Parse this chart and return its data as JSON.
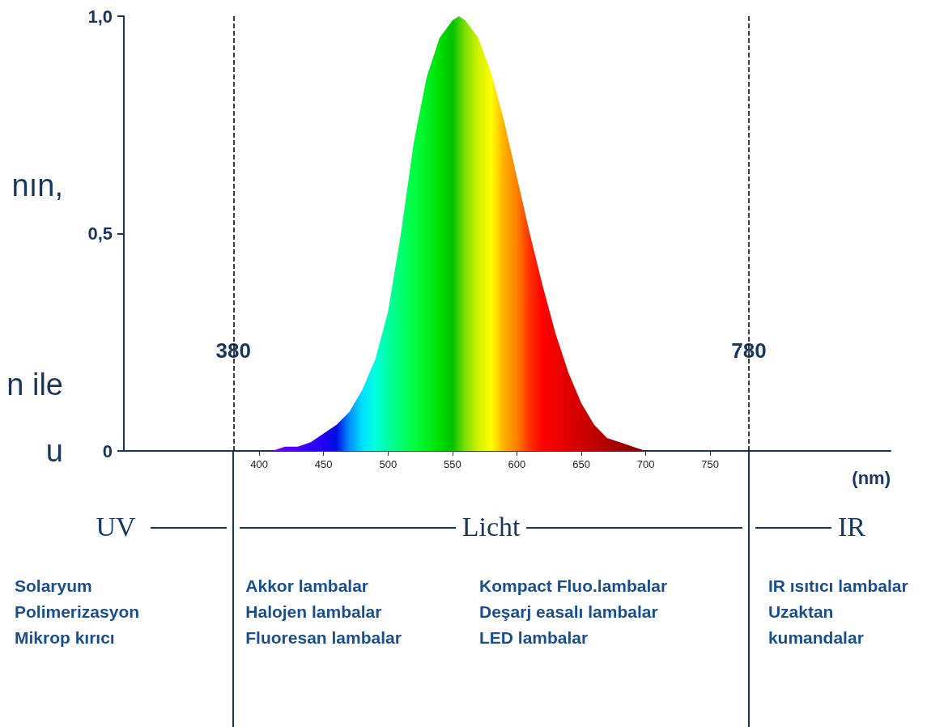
{
  "chart_data": {
    "type": "area",
    "xlabel": "(nm)",
    "x": [
      380,
      400,
      410,
      420,
      430,
      440,
      450,
      460,
      470,
      480,
      490,
      500,
      510,
      520,
      530,
      540,
      550,
      555,
      560,
      570,
      580,
      590,
      600,
      610,
      620,
      630,
      640,
      650,
      660,
      670,
      680,
      690,
      700,
      720,
      750,
      780
    ],
    "values": [
      0,
      0,
      0,
      0.01,
      0.01,
      0.02,
      0.04,
      0.06,
      0.09,
      0.14,
      0.21,
      0.32,
      0.5,
      0.71,
      0.86,
      0.95,
      0.99,
      1,
      0.99,
      0.95,
      0.87,
      0.76,
      0.63,
      0.5,
      0.38,
      0.27,
      0.18,
      0.11,
      0.06,
      0.03,
      0.02,
      0.01,
      0,
      0,
      0,
      0
    ],
    "colors": [
      "#7000c0",
      "#7a00e0",
      "#7000f0",
      "#6000ff",
      "#4a00ff",
      "#3000ff",
      "#2000f0",
      "#0010e0",
      "#0090ff",
      "#00e0ff",
      "#00ffe0",
      "#00ffa0",
      "#00ff70",
      "#00ff40",
      "#00f020",
      "#00e000",
      "#00c000",
      "#40d000",
      "#80e000",
      "#d0f000",
      "#ffff00",
      "#ffb000",
      "#ff8000",
      "#ff3000",
      "#ff0000",
      "#f00000",
      "#e00000",
      "#d00000",
      "#c00000",
      "#b00000",
      "#a00000",
      "#900000",
      "#800000",
      "#700000",
      "#600000",
      "#500000"
    ],
    "xlim": [
      295,
      890
    ],
    "xticks": [
      400,
      450,
      500,
      550,
      600,
      650,
      700,
      750
    ],
    "ylim": [
      0,
      1
    ],
    "yticks": [
      {
        "value": 0,
        "label": "0"
      },
      {
        "value": 0.5,
        "label": "0,5"
      },
      {
        "value": 1,
        "label": "1,0"
      }
    ],
    "ref_lines": [
      {
        "axis": "x",
        "value": 380,
        "label": "380",
        "line_style": "dashed"
      },
      {
        "axis": "x",
        "value": 780,
        "label": "780",
        "line_style": "dashed"
      }
    ],
    "annotations": [
      "nın,",
      "n ile",
      "u",
      "UV",
      "Licht",
      "IR",
      "Solaryum\nPolimerizasyon\nMikrop kırıcı",
      "Akkor lambalar\nHalojen lambalar\nFluoresan lambalar",
      "Kompact Fluo.lambalar\nDeşarj easalı lambalar\nLED lambalar",
      "IR ısıtıcı lambalar\nUzaktan\nkumandalar"
    ],
    "grid": false,
    "marker": "none"
  }
}
